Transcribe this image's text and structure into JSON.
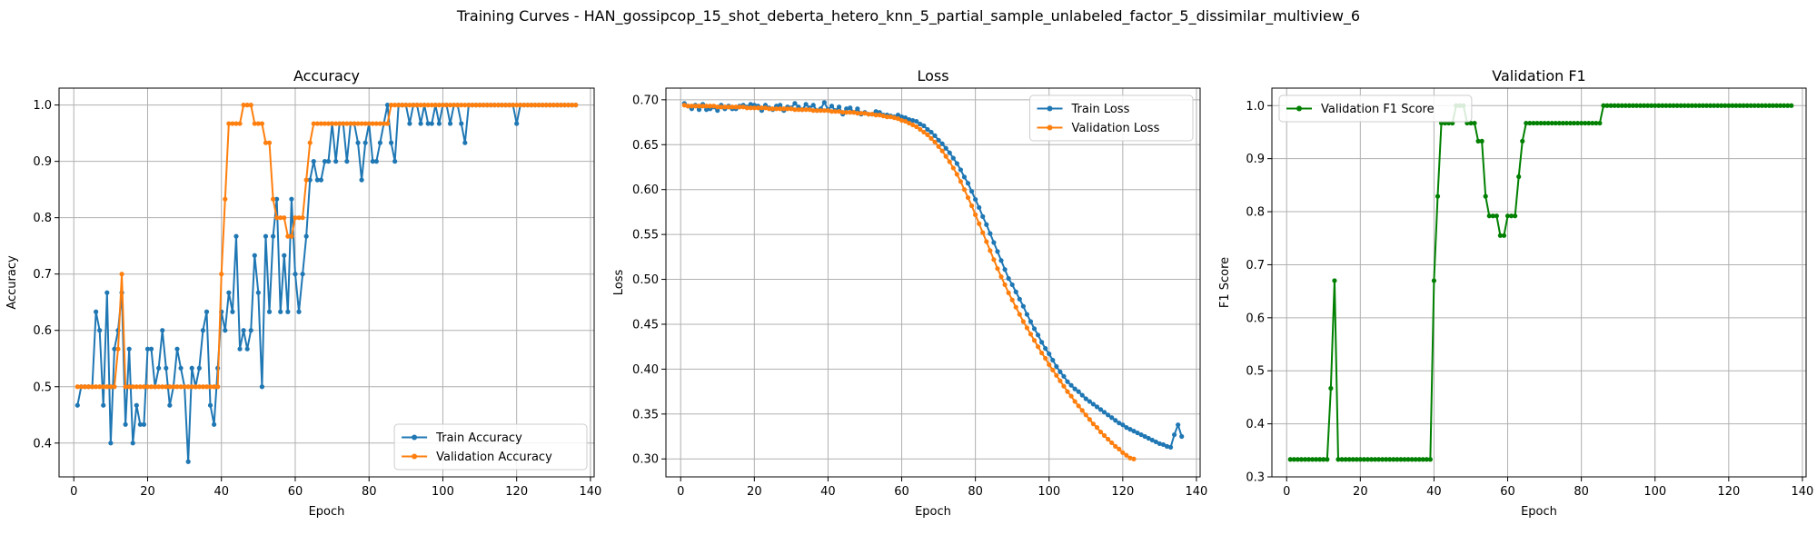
{
  "figure_title": "Training Curves - HAN_gossipcop_15_shot_deberta_hetero_knn_5_partial_sample_unlabeled_factor_5_dissimilar_multiview_6",
  "colors": {
    "blue": "#1f77b4",
    "orange": "#ff7f0e",
    "green": "#008000",
    "grid": "#b0b0b0"
  },
  "chart_data": [
    {
      "type": "line",
      "title": "Accuracy",
      "xlabel": "Epoch",
      "ylabel": "Accuracy",
      "xlim": [
        -4,
        141
      ],
      "ylim": [
        0.34,
        1.03
      ],
      "xticks": [
        0,
        20,
        40,
        60,
        80,
        100,
        120,
        140
      ],
      "yticks": [
        0.4,
        0.5,
        0.6,
        0.7,
        0.8,
        0.9,
        1.0
      ],
      "grid": true,
      "legend": "lower right",
      "x_start": 1,
      "series": [
        {
          "name": "Train Accuracy",
          "color": "#1f77b4",
          "values": [
            0.467,
            0.5,
            0.5,
            0.5,
            0.5,
            0.633,
            0.6,
            0.467,
            0.667,
            0.4,
            0.567,
            0.6,
            0.667,
            0.433,
            0.567,
            0.4,
            0.467,
            0.433,
            0.433,
            0.567,
            0.567,
            0.5,
            0.533,
            0.6,
            0.533,
            0.467,
            0.5,
            0.567,
            0.533,
            0.5,
            0.367,
            0.533,
            0.5,
            0.533,
            0.6,
            0.633,
            0.467,
            0.433,
            0.533,
            0.633,
            0.6,
            0.667,
            0.633,
            0.767,
            0.567,
            0.6,
            0.567,
            0.6,
            0.733,
            0.667,
            0.5,
            0.767,
            0.633,
            0.767,
            0.833,
            0.633,
            0.733,
            0.633,
            0.833,
            0.7,
            0.633,
            0.7,
            0.767,
            0.867,
            0.9,
            0.867,
            0.867,
            0.9,
            0.9,
            0.967,
            0.9,
            0.967,
            0.967,
            0.9,
            0.967,
            0.967,
            0.933,
            0.867,
            0.933,
            0.967,
            0.9,
            0.9,
            0.933,
            0.967,
            1.0,
            0.933,
            0.9,
            1.0,
            1.0,
            1.0,
            0.967,
            1.0,
            1.0,
            0.967,
            1.0,
            0.967,
            0.967,
            1.0,
            0.967,
            1.0,
            1.0,
            0.967,
            1.0,
            1.0,
            0.967,
            0.933,
            1.0,
            1.0,
            1.0,
            1.0,
            1.0,
            1.0,
            1.0,
            1.0,
            1.0,
            1.0,
            1.0,
            1.0,
            1.0,
            0.967,
            1.0,
            1.0,
            1.0,
            1.0,
            1.0,
            1.0,
            1.0,
            1.0,
            1.0,
            1.0,
            1.0,
            1.0,
            1.0,
            1.0,
            1.0,
            1.0
          ]
        },
        {
          "name": "Validation Accuracy",
          "color": "#ff7f0e",
          "values": [
            0.5,
            0.5,
            0.5,
            0.5,
            0.5,
            0.5,
            0.5,
            0.5,
            0.5,
            0.5,
            0.5,
            0.567,
            0.7,
            0.5,
            0.5,
            0.5,
            0.5,
            0.5,
            0.5,
            0.5,
            0.5,
            0.5,
            0.5,
            0.5,
            0.5,
            0.5,
            0.5,
            0.5,
            0.5,
            0.5,
            0.5,
            0.5,
            0.5,
            0.5,
            0.5,
            0.5,
            0.5,
            0.5,
            0.5,
            0.7,
            0.833,
            0.967,
            0.967,
            0.967,
            0.967,
            1.0,
            1.0,
            1.0,
            0.967,
            0.967,
            0.967,
            0.933,
            0.933,
            0.833,
            0.8,
            0.8,
            0.8,
            0.767,
            0.767,
            0.8,
            0.8,
            0.8,
            0.867,
            0.933,
            0.967,
            0.967,
            0.967,
            0.967,
            0.967,
            0.967,
            0.967,
            0.967,
            0.967,
            0.967,
            0.967,
            0.967,
            0.967,
            0.967,
            0.967,
            0.967,
            0.967,
            0.967,
            0.967,
            0.967,
            0.967,
            1.0,
            1.0,
            1.0,
            1.0,
            1.0,
            1.0,
            1.0,
            1.0,
            1.0,
            1.0,
            1.0,
            1.0,
            1.0,
            1.0,
            1.0,
            1.0,
            1.0,
            1.0,
            1.0,
            1.0,
            1.0,
            1.0,
            1.0,
            1.0,
            1.0,
            1.0,
            1.0,
            1.0,
            1.0,
            1.0,
            1.0,
            1.0,
            1.0,
            1.0,
            1.0,
            1.0,
            1.0,
            1.0,
            1.0,
            1.0,
            1.0,
            1.0,
            1.0,
            1.0,
            1.0,
            1.0,
            1.0,
            1.0,
            1.0,
            1.0,
            1.0
          ]
        }
      ]
    },
    {
      "type": "line",
      "title": "Loss",
      "xlabel": "Epoch",
      "ylabel": "Loss",
      "xlim": [
        -4,
        141
      ],
      "ylim": [
        0.28,
        0.713
      ],
      "xticks": [
        0,
        20,
        40,
        60,
        80,
        100,
        120,
        140
      ],
      "yticks": [
        0.3,
        0.35,
        0.4,
        0.45,
        0.5,
        0.55,
        0.6,
        0.65,
        0.7
      ],
      "grid": true,
      "legend": "upper right",
      "x_start": 1,
      "series": [
        {
          "name": "Train Loss",
          "color": "#1f77b4",
          "values": [
            0.696,
            0.693,
            0.69,
            0.694,
            0.689,
            0.695,
            0.689,
            0.69,
            0.692,
            0.688,
            0.694,
            0.69,
            0.693,
            0.69,
            0.69,
            0.693,
            0.694,
            0.692,
            0.695,
            0.694,
            0.693,
            0.688,
            0.694,
            0.691,
            0.689,
            0.693,
            0.694,
            0.688,
            0.692,
            0.691,
            0.696,
            0.692,
            0.689,
            0.695,
            0.691,
            0.694,
            0.688,
            0.69,
            0.697,
            0.689,
            0.693,
            0.688,
            0.692,
            0.684,
            0.69,
            0.691,
            0.686,
            0.69,
            0.684,
            0.686,
            0.684,
            0.684,
            0.687,
            0.686,
            0.683,
            0.683,
            0.682,
            0.681,
            0.683,
            0.681,
            0.68,
            0.678,
            0.677,
            0.676,
            0.673,
            0.671,
            0.667,
            0.664,
            0.66,
            0.655,
            0.651,
            0.646,
            0.641,
            0.635,
            0.629,
            0.622,
            0.614,
            0.607,
            0.598,
            0.589,
            0.58,
            0.57,
            0.561,
            0.551,
            0.541,
            0.531,
            0.521,
            0.511,
            0.501,
            0.494,
            0.486,
            0.478,
            0.47,
            0.461,
            0.453,
            0.445,
            0.438,
            0.43,
            0.423,
            0.417,
            0.41,
            0.403,
            0.397,
            0.392,
            0.386,
            0.382,
            0.378,
            0.375,
            0.371,
            0.367,
            0.364,
            0.361,
            0.358,
            0.355,
            0.352,
            0.349,
            0.346,
            0.343,
            0.34,
            0.338,
            0.335,
            0.333,
            0.331,
            0.329,
            0.327,
            0.325,
            0.323,
            0.321,
            0.319,
            0.317,
            0.316,
            0.314,
            0.313,
            0.327,
            0.338,
            0.325
          ]
        },
        {
          "name": "Validation Loss",
          "color": "#ff7f0e",
          "values": [
            0.694,
            0.693,
            0.693,
            0.693,
            0.693,
            0.693,
            0.693,
            0.693,
            0.693,
            0.692,
            0.692,
            0.692,
            0.692,
            0.692,
            0.692,
            0.692,
            0.692,
            0.691,
            0.691,
            0.691,
            0.691,
            0.691,
            0.691,
            0.69,
            0.69,
            0.69,
            0.69,
            0.69,
            0.69,
            0.69,
            0.689,
            0.689,
            0.689,
            0.689,
            0.689,
            0.688,
            0.688,
            0.688,
            0.688,
            0.688,
            0.687,
            0.687,
            0.687,
            0.686,
            0.686,
            0.686,
            0.686,
            0.685,
            0.685,
            0.685,
            0.684,
            0.684,
            0.683,
            0.683,
            0.682,
            0.681,
            0.681,
            0.68,
            0.679,
            0.677,
            0.676,
            0.674,
            0.672,
            0.67,
            0.667,
            0.664,
            0.661,
            0.657,
            0.653,
            0.648,
            0.643,
            0.637,
            0.631,
            0.624,
            0.617,
            0.609,
            0.6,
            0.591,
            0.582,
            0.572,
            0.562,
            0.552,
            0.542,
            0.532,
            0.522,
            0.512,
            0.503,
            0.494,
            0.485,
            0.477,
            0.469,
            0.461,
            0.453,
            0.446,
            0.439,
            0.432,
            0.425,
            0.418,
            0.412,
            0.405,
            0.399,
            0.393,
            0.387,
            0.381,
            0.375,
            0.37,
            0.364,
            0.359,
            0.354,
            0.349,
            0.344,
            0.339,
            0.335,
            0.33,
            0.326,
            0.322,
            0.318,
            0.314,
            0.311,
            0.307,
            0.304,
            0.301,
            0.3
          ]
        }
      ]
    },
    {
      "type": "line",
      "title": "Validation F1",
      "xlabel": "Epoch",
      "ylabel": "F1 Score",
      "xlim": [
        -4,
        141
      ],
      "ylim": [
        0.3,
        1.033
      ],
      "xticks": [
        0,
        20,
        40,
        60,
        80,
        100,
        120,
        140
      ],
      "yticks": [
        0.3,
        0.4,
        0.5,
        0.6,
        0.7,
        0.8,
        0.9,
        1.0
      ],
      "grid": true,
      "legend": "upper left",
      "x_start": 1,
      "series": [
        {
          "name": "Validation F1 Score",
          "color": "#008000",
          "values": [
            0.333,
            0.333,
            0.333,
            0.333,
            0.333,
            0.333,
            0.333,
            0.333,
            0.333,
            0.333,
            0.333,
            0.467,
            0.67,
            0.333,
            0.333,
            0.333,
            0.333,
            0.333,
            0.333,
            0.333,
            0.333,
            0.333,
            0.333,
            0.333,
            0.333,
            0.333,
            0.333,
            0.333,
            0.333,
            0.333,
            0.333,
            0.333,
            0.333,
            0.333,
            0.333,
            0.333,
            0.333,
            0.333,
            0.333,
            0.67,
            0.829,
            0.967,
            0.967,
            0.967,
            0.967,
            1.0,
            1.0,
            1.0,
            0.967,
            0.967,
            0.967,
            0.933,
            0.933,
            0.829,
            0.792,
            0.792,
            0.792,
            0.755,
            0.755,
            0.792,
            0.792,
            0.792,
            0.866,
            0.933,
            0.967,
            0.967,
            0.967,
            0.967,
            0.967,
            0.967,
            0.967,
            0.967,
            0.967,
            0.967,
            0.967,
            0.967,
            0.967,
            0.967,
            0.967,
            0.967,
            0.967,
            0.967,
            0.967,
            0.967,
            0.967,
            1.0,
            1.0,
            1.0,
            1.0,
            1.0,
            1.0,
            1.0,
            1.0,
            1.0,
            1.0,
            1.0,
            1.0,
            1.0,
            1.0,
            1.0,
            1.0,
            1.0,
            1.0,
            1.0,
            1.0,
            1.0,
            1.0,
            1.0,
            1.0,
            1.0,
            1.0,
            1.0,
            1.0,
            1.0,
            1.0,
            1.0,
            1.0,
            1.0,
            1.0,
            1.0,
            1.0,
            1.0,
            1.0,
            1.0,
            1.0,
            1.0,
            1.0,
            1.0,
            1.0,
            1.0,
            1.0,
            1.0,
            1.0,
            1.0,
            1.0,
            1.0,
            1.0
          ]
        }
      ]
    }
  ]
}
